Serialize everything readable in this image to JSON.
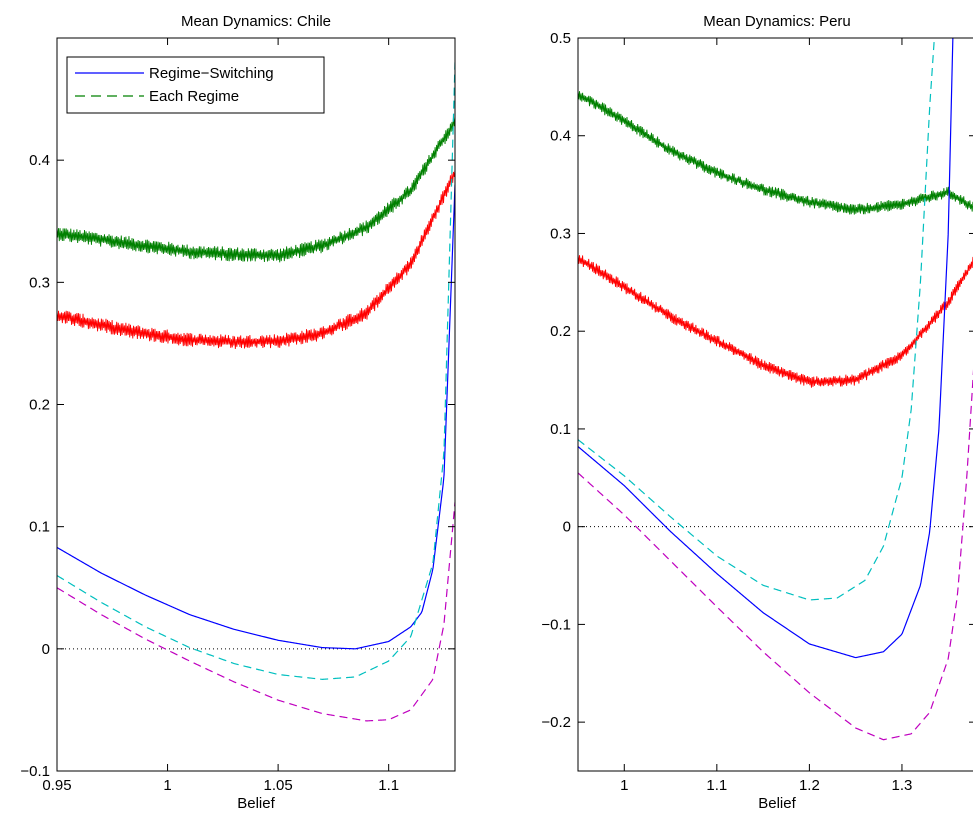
{
  "chart_data": [
    {
      "type": "line",
      "title": "Mean Dynamics: Chile",
      "xlabel": "Belief",
      "ylabel": "",
      "xlim": [
        0.95,
        1.13
      ],
      "ylim": [
        -0.1,
        0.5
      ],
      "xticks": [
        0.95,
        1,
        1.05,
        1.1
      ],
      "xtick_labels": [
        "0.95",
        "1",
        "1.05",
        "1.1"
      ],
      "yticks": [
        -0.1,
        0,
        0.1,
        0.2,
        0.3,
        0.4
      ],
      "ytick_labels": [
        "−0.1",
        "0",
        "0.1",
        "0.2",
        "0.3",
        "0.4"
      ],
      "legend": {
        "placement": "top-left",
        "entries": [
          {
            "label": "Regime−Switching",
            "color": "#0000ff",
            "style": "solid"
          },
          {
            "label": "Each Regime",
            "color": "#008000",
            "style": "dashed"
          }
        ]
      },
      "reference_line": {
        "y": 0,
        "color": "#000000",
        "style": "dotted"
      },
      "series": [
        {
          "color": "#008000",
          "style": "noisy",
          "x": [
            0.95,
            0.97,
            0.99,
            1.01,
            1.03,
            1.05,
            1.07,
            1.09,
            1.11,
            1.13
          ],
          "y": [
            0.34,
            0.335,
            0.33,
            0.325,
            0.323,
            0.322,
            0.33,
            0.345,
            0.375,
            0.432
          ]
        },
        {
          "color": "#ff0000",
          "style": "noisy",
          "x": [
            0.95,
            0.97,
            0.99,
            1.01,
            1.03,
            1.05,
            1.07,
            1.09,
            1.11,
            1.13
          ],
          "y": [
            0.273,
            0.265,
            0.258,
            0.253,
            0.251,
            0.252,
            0.258,
            0.275,
            0.315,
            0.39
          ]
        },
        {
          "color": "#0000ff",
          "style": "solid",
          "x": [
            0.95,
            0.97,
            0.99,
            1.01,
            1.03,
            1.05,
            1.07,
            1.085,
            1.1,
            1.11,
            1.115,
            1.12,
            1.125,
            1.13
          ],
          "y": [
            0.083,
            0.062,
            0.044,
            0.028,
            0.016,
            0.007,
            0.001,
            0.0,
            0.006,
            0.018,
            0.03,
            0.065,
            0.14,
            0.38
          ]
        },
        {
          "color": "#00bfbf",
          "style": "dashed",
          "x": [
            0.95,
            0.97,
            0.99,
            1.01,
            1.03,
            1.05,
            1.07,
            1.085,
            1.1,
            1.11,
            1.12,
            1.125,
            1.13
          ],
          "y": [
            0.06,
            0.038,
            0.018,
            0.001,
            -0.012,
            -0.021,
            -0.025,
            -0.023,
            -0.01,
            0.01,
            0.07,
            0.16,
            0.48
          ]
        },
        {
          "color": "#bf00bf",
          "style": "dashed",
          "x": [
            0.95,
            0.97,
            0.99,
            1.01,
            1.03,
            1.05,
            1.07,
            1.09,
            1.1,
            1.11,
            1.12,
            1.125,
            1.13
          ],
          "y": [
            0.05,
            0.028,
            0.008,
            -0.01,
            -0.027,
            -0.042,
            -0.053,
            -0.059,
            -0.058,
            -0.05,
            -0.025,
            0.02,
            0.12
          ]
        }
      ]
    },
    {
      "type": "line",
      "title": "Mean Dynamics: Peru",
      "xlabel": "Belief",
      "ylabel": "",
      "xlim": [
        0.95,
        1.38
      ],
      "ylim": [
        -0.25,
        0.5
      ],
      "xticks": [
        1,
        1.1,
        1.2,
        1.3
      ],
      "xtick_labels": [
        "1",
        "1.1",
        "1.2",
        "1.3"
      ],
      "yticks": [
        -0.2,
        -0.1,
        0,
        0.1,
        0.2,
        0.3,
        0.4,
        0.5
      ],
      "ytick_labels": [
        "−0.2",
        "−0.1",
        "0",
        "0.1",
        "0.2",
        "0.3",
        "0.4",
        "0.5"
      ],
      "reference_line": {
        "y": 0,
        "color": "#000000",
        "style": "dotted"
      },
      "series": [
        {
          "color": "#008000",
          "style": "noisy",
          "x": [
            0.95,
            1.0,
            1.05,
            1.1,
            1.15,
            1.2,
            1.25,
            1.3,
            1.35,
            1.38
          ],
          "y": [
            0.443,
            0.415,
            0.385,
            0.362,
            0.345,
            0.332,
            0.324,
            0.33,
            0.342,
            0.325
          ]
        },
        {
          "color": "#ff0000",
          "style": "noisy",
          "x": [
            0.95,
            1.0,
            1.05,
            1.1,
            1.15,
            1.2,
            1.25,
            1.3,
            1.35,
            1.38
          ],
          "y": [
            0.275,
            0.245,
            0.215,
            0.19,
            0.165,
            0.148,
            0.15,
            0.175,
            0.23,
            0.275
          ]
        },
        {
          "color": "#0000ff",
          "style": "solid",
          "x": [
            0.95,
            1.0,
            1.05,
            1.1,
            1.15,
            1.2,
            1.25,
            1.28,
            1.3,
            1.32,
            1.33,
            1.34,
            1.35,
            1.355
          ],
          "y": [
            0.082,
            0.042,
            -0.005,
            -0.048,
            -0.088,
            -0.12,
            -0.134,
            -0.128,
            -0.11,
            -0.06,
            -0.005,
            0.1,
            0.3,
            0.5
          ]
        },
        {
          "color": "#00bfbf",
          "style": "dashed",
          "x": [
            0.95,
            1.0,
            1.05,
            1.1,
            1.15,
            1.2,
            1.23,
            1.26,
            1.28,
            1.3,
            1.31,
            1.32,
            1.33,
            1.335
          ],
          "y": [
            0.089,
            0.052,
            0.01,
            -0.03,
            -0.06,
            -0.075,
            -0.073,
            -0.055,
            -0.02,
            0.05,
            0.12,
            0.25,
            0.43,
            0.5
          ]
        },
        {
          "color": "#bf00bf",
          "style": "dashed",
          "x": [
            0.95,
            1.0,
            1.05,
            1.1,
            1.15,
            1.2,
            1.25,
            1.28,
            1.31,
            1.33,
            1.35,
            1.36,
            1.37,
            1.38
          ],
          "y": [
            0.055,
            0.012,
            -0.035,
            -0.082,
            -0.128,
            -0.17,
            -0.206,
            -0.218,
            -0.212,
            -0.19,
            -0.135,
            -0.07,
            0.05,
            0.2
          ]
        }
      ]
    }
  ]
}
